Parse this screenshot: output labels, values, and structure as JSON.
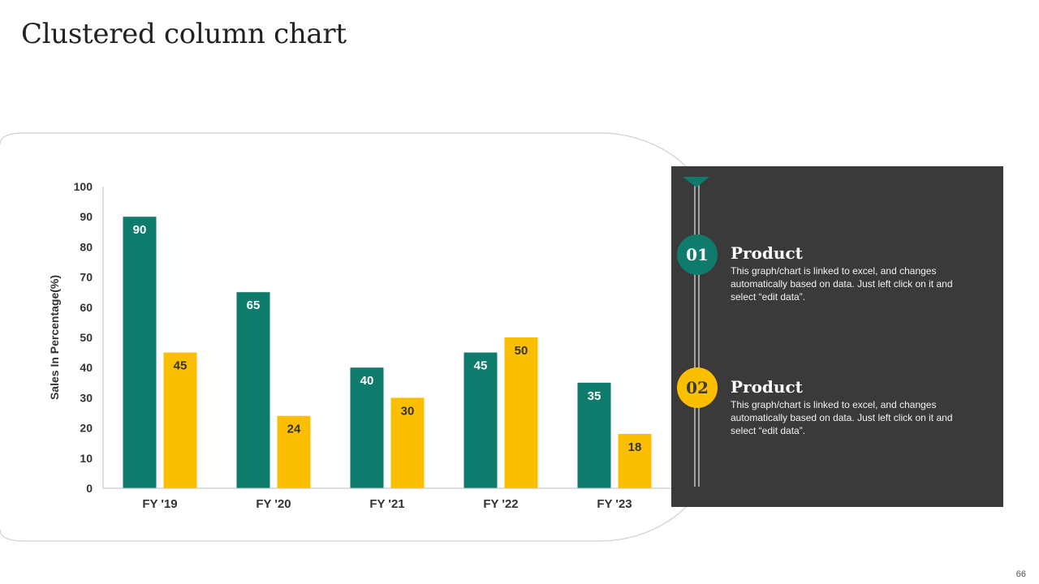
{
  "slide": {
    "title": "Clustered column chart",
    "page_number": "66"
  },
  "colors": {
    "series_1": "#0f7b6c",
    "series_2": "#fbbf00",
    "panel": "#3a3a3a"
  },
  "chart_data": {
    "type": "bar",
    "title": "",
    "xlabel": "",
    "ylabel": "Sales In Percentage(%)",
    "ylim": [
      0,
      100
    ],
    "yticks": [
      0,
      10,
      20,
      30,
      40,
      50,
      60,
      70,
      80,
      90,
      100
    ],
    "categories": [
      "FY '19",
      "FY '20",
      "FY '21",
      "FY '22",
      "FY '23"
    ],
    "series": [
      {
        "name": "Product 01",
        "values": [
          90,
          65,
          40,
          45,
          35
        ]
      },
      {
        "name": "Product 02",
        "values": [
          45,
          24,
          30,
          50,
          18
        ]
      }
    ],
    "grid": false,
    "legend": "none"
  },
  "legend_panel": {
    "items": [
      {
        "number": "01",
        "title": "Product",
        "description": "This graph/chart is linked to excel, and changes automatically based on data. Just left click on it and select “edit data”."
      },
      {
        "number": "02",
        "title": "Product",
        "description": "This graph/chart is linked to excel, and changes automatically based on data. Just left click on it and select “edit data”."
      }
    ]
  }
}
